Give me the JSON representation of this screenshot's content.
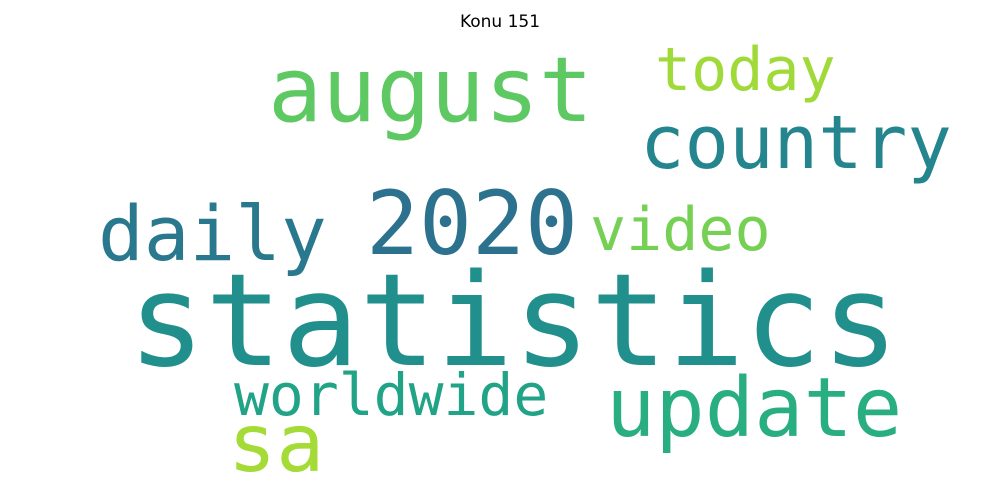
{
  "title": "Konu 151",
  "words": [
    {
      "id": "statistics",
      "text": "statistics",
      "color": "#21908d"
    },
    {
      "id": "2020",
      "text": "2020",
      "color": "#2c728e"
    },
    {
      "id": "august",
      "text": "august",
      "color": "#5ec962"
    },
    {
      "id": "update",
      "text": "update",
      "color": "#28ae80"
    },
    {
      "id": "country",
      "text": "country",
      "color": "#25858e"
    },
    {
      "id": "daily",
      "text": "daily",
      "color": "#2a788e"
    },
    {
      "id": "today",
      "text": "today",
      "color": "#a0da39"
    },
    {
      "id": "video",
      "text": "video",
      "color": "#75d054"
    },
    {
      "id": "worldwide",
      "text": "worldwide",
      "color": "#20a386"
    },
    {
      "id": "sa",
      "text": "sa",
      "color": "#a5db36"
    }
  ]
}
